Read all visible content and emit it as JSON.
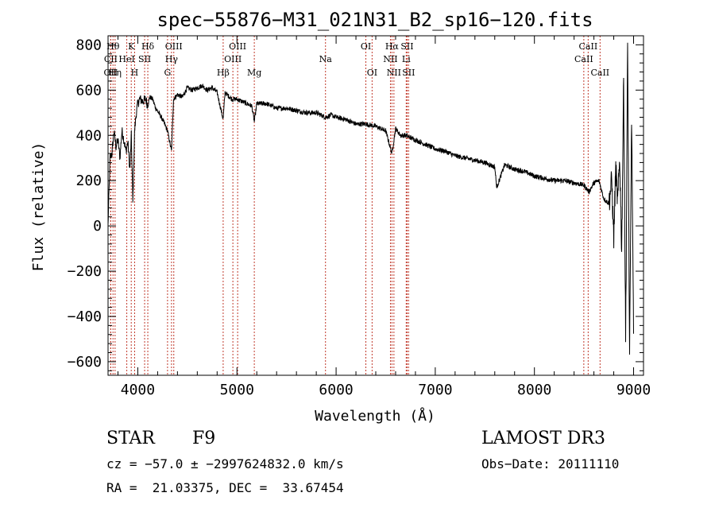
{
  "chart_data": {
    "type": "line",
    "title": "spec−55876−M31_021N31_B2_sp16−120.fits",
    "xlabel": "Wavelength (Å)",
    "ylabel": "Flux (relative)",
    "xlim": [
      3700,
      9100
    ],
    "ylim": [
      -660,
      840
    ],
    "xticks": [
      4000,
      5000,
      6000,
      7000,
      8000,
      9000
    ],
    "xtick_labels": [
      "4000",
      "5000",
      "6000",
      "7000",
      "8000",
      "9000"
    ],
    "yticks": [
      -600,
      -400,
      -200,
      0,
      200,
      400,
      600,
      800
    ],
    "ytick_labels": [
      "−600",
      "−400",
      "−200",
      "0",
      "200",
      "400",
      "600",
      "800"
    ],
    "grid": false,
    "series": [
      {
        "name": "flux",
        "x": [
          3700,
          3720,
          3740,
          3760,
          3780,
          3800,
          3820,
          3840,
          3860,
          3880,
          3900,
          3920,
          3935,
          3950,
          3968,
          3985,
          4000,
          4020,
          4050,
          4080,
          4101,
          4120,
          4150,
          4180,
          4210,
          4250,
          4300,
          4340,
          4360,
          4400,
          4450,
          4500,
          4550,
          4600,
          4650,
          4700,
          4750,
          4800,
          4861,
          4880,
          4900,
          4950,
          5000,
          5050,
          5100,
          5150,
          5175,
          5200,
          5300,
          5400,
          5500,
          5600,
          5700,
          5800,
          5893,
          5950,
          6000,
          6100,
          6200,
          6300,
          6400,
          6500,
          6563,
          6600,
          6650,
          6700,
          6800,
          6900,
          7000,
          7100,
          7200,
          7300,
          7400,
          7500,
          7600,
          7620,
          7700,
          7800,
          7900,
          8000,
          8100,
          8200,
          8300,
          8400,
          8500,
          8550,
          8600,
          8650,
          8700,
          8750,
          8780,
          8800,
          8820,
          8840,
          8860,
          8880,
          8900,
          8920,
          8940,
          8960,
          8980,
          9000
        ],
        "y": [
          0,
          300,
          320,
          420,
          350,
          380,
          300,
          420,
          380,
          330,
          370,
          250,
          400,
          100,
          420,
          500,
          540,
          560,
          550,
          560,
          530,
          570,
          560,
          520,
          500,
          470,
          420,
          330,
          560,
          580,
          570,
          610,
          600,
          610,
          620,
          600,
          610,
          590,
          470,
          590,
          580,
          560,
          560,
          550,
          540,
          530,
          460,
          540,
          540,
          520,
          520,
          510,
          500,
          500,
          480,
          490,
          480,
          470,
          450,
          450,
          440,
          420,
          320,
          430,
          400,
          400,
          380,
          360,
          340,
          330,
          310,
          300,
          290,
          280,
          260,
          170,
          270,
          250,
          240,
          220,
          210,
          200,
          200,
          190,
          180,
          150,
          190,
          200,
          120,
          100,
          200,
          -50,
          250,
          100,
          300,
          -100,
          650,
          -500,
          800,
          -600,
          500,
          -500
        ]
      }
    ],
    "lines": [
      {
        "wl": 3750,
        "label": "Hθ",
        "row": 0
      },
      {
        "wl": 3727,
        "label": "OII",
        "row": 2
      },
      {
        "wl": 3771,
        "label": "Hη",
        "row": 2
      },
      {
        "wl": 3727,
        "label": "CII",
        "row": 1
      },
      {
        "wl": 3889,
        "label": "HeI",
        "row": 1
      },
      {
        "wl": 3934,
        "label": "K",
        "row": 0
      },
      {
        "wl": 3968,
        "label": "H",
        "row": 2
      },
      {
        "wl": 4069,
        "label": "SII",
        "row": 1
      },
      {
        "wl": 4101,
        "label": "Hδ",
        "row": 0
      },
      {
        "wl": 4300,
        "label": "G",
        "row": 2
      },
      {
        "wl": 4340,
        "label": "Hγ",
        "row": 1
      },
      {
        "wl": 4363,
        "label": "OIII",
        "row": 0
      },
      {
        "wl": 4861,
        "label": "Hβ",
        "row": 2
      },
      {
        "wl": 4959,
        "label": "OIII",
        "row": 1
      },
      {
        "wl": 5007,
        "label": "OIII",
        "row": 0
      },
      {
        "wl": 5175,
        "label": "Mg",
        "row": 2
      },
      {
        "wl": 5893,
        "label": "Na",
        "row": 1
      },
      {
        "wl": 6300,
        "label": "OI",
        "row": 0
      },
      {
        "wl": 6363,
        "label": "OI",
        "row": 2
      },
      {
        "wl": 6548,
        "label": "NII",
        "row": 1
      },
      {
        "wl": 6563,
        "label": "Hα",
        "row": 0
      },
      {
        "wl": 6583,
        "label": "NII",
        "row": 2
      },
      {
        "wl": 6707,
        "label": "Li",
        "row": 1
      },
      {
        "wl": 6716,
        "label": "SII",
        "row": 0
      },
      {
        "wl": 6731,
        "label": "SII",
        "row": 2
      },
      {
        "wl": 8498,
        "label": "CaII",
        "row": 1
      },
      {
        "wl": 8542,
        "label": "CaII",
        "row": 0
      },
      {
        "wl": 8662,
        "label": "CaII",
        "row": 2
      }
    ]
  },
  "info": {
    "class_label": "STAR",
    "subclass": "F9",
    "survey": "LAMOST DR3",
    "velocity": "cz = −57.0 ± −2997624832.0 km/s",
    "obs_date": "Obs−Date: 20111110",
    "coords": "RA =  21.03375, DEC =  33.67454"
  }
}
